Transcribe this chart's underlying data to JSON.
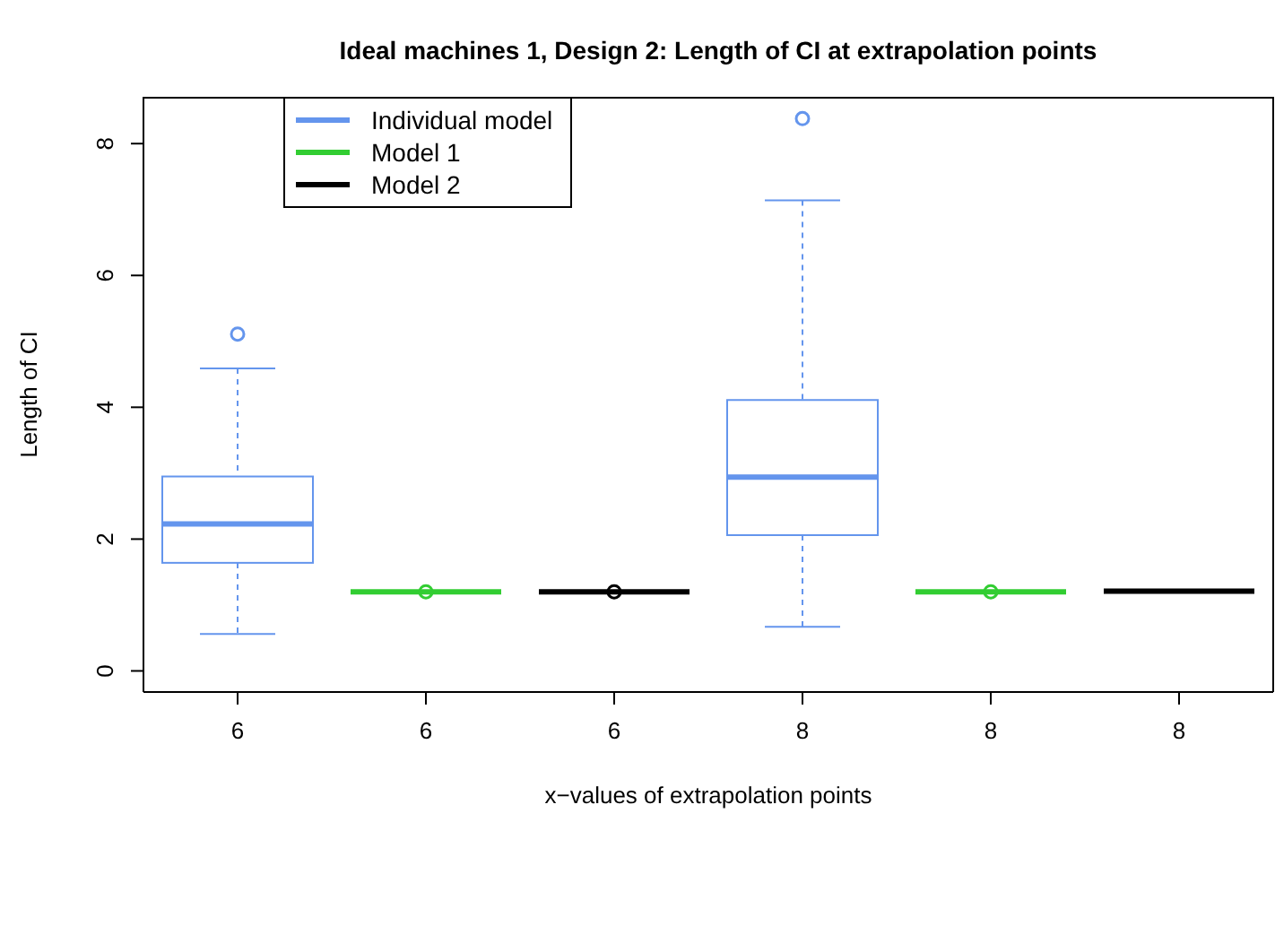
{
  "chart_data": {
    "type": "box",
    "title": "Ideal machines 1, Design 2: Length of CI at extrapolation points",
    "xlabel": "x−values of extrapolation points",
    "ylabel": "Length of CI",
    "categories": [
      "6",
      "6",
      "6",
      "8",
      "8",
      "8"
    ],
    "ylim": [
      -0.32,
      8.71
    ],
    "yticks": [
      0,
      2,
      4,
      6,
      8
    ],
    "legend": "top left",
    "series": [
      {
        "name": "Individual model",
        "color": "#6495ed",
        "boxes": [
          {
            "low": 0.56,
            "q1": 1.64,
            "median": 2.23,
            "q3": 2.95,
            "high": 4.59,
            "outliers": [
              5.11
            ]
          },
          null,
          null,
          {
            "low": 0.67,
            "q1": 2.06,
            "median": 2.94,
            "q3": 4.11,
            "high": 7.14,
            "outliers": [
              8.38
            ]
          },
          null,
          null
        ]
      },
      {
        "name": "Model 1",
        "color": "#32cd32",
        "boxes": [
          null,
          {
            "low": 1.2,
            "q1": 1.2,
            "median": 1.2,
            "q3": 1.2,
            "high": 1.2,
            "outliers": [
              1.2
            ]
          },
          null,
          null,
          {
            "low": 1.2,
            "q1": 1.2,
            "median": 1.2,
            "q3": 1.2,
            "high": 1.2,
            "outliers": [
              1.2
            ]
          },
          null
        ]
      },
      {
        "name": "Model 2",
        "color": "#000000",
        "boxes": [
          null,
          null,
          {
            "low": 1.2,
            "q1": 1.2,
            "median": 1.2,
            "q3": 1.2,
            "high": 1.2,
            "outliers": [
              1.2
            ]
          },
          null,
          null,
          {
            "low": 1.21,
            "q1": 1.21,
            "median": 1.21,
            "q3": 1.21,
            "high": 1.21
          }
        ]
      }
    ]
  }
}
